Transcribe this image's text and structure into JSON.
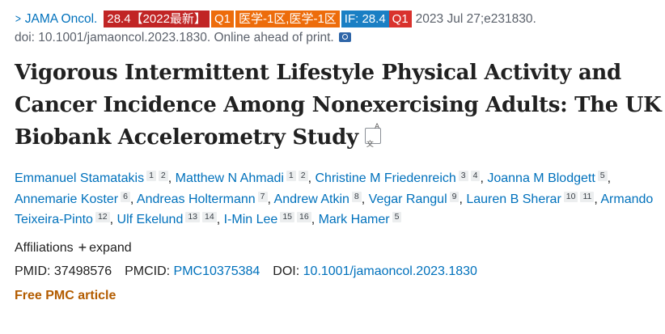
{
  "citation": {
    "journal": "JAMA Oncol.",
    "tags": [
      "28.4【2022最新】",
      "Q1",
      "医学-1区,医学-1区"
    ],
    "if_label": "IF: 28.4",
    "if_quartile": "Q1",
    "date": "2023 Jul 27;e231830.",
    "doi_line": "doi: 10.1001/jamaoncol.2023.1830. Online ahead of print."
  },
  "title": "Vigorous Intermittent Lifestyle Physical Activity and Cancer Incidence Among Nonexercising Adults: The UK Biobank Accelerometry Study",
  "translate_icon": {
    "zh": "文",
    "en": "A"
  },
  "authors": [
    {
      "name": "Emmanuel Stamatakis",
      "aff": [
        "1",
        "2"
      ]
    },
    {
      "name": "Matthew N Ahmadi",
      "aff": [
        "1",
        "2"
      ]
    },
    {
      "name": "Christine M Friedenreich",
      "aff": [
        "3",
        "4"
      ]
    },
    {
      "name": "Joanna M Blodgett",
      "aff": [
        "5"
      ]
    },
    {
      "name": "Annemarie Koster",
      "aff": [
        "6"
      ]
    },
    {
      "name": "Andreas Holtermann",
      "aff": [
        "7"
      ]
    },
    {
      "name": "Andrew Atkin",
      "aff": [
        "8"
      ]
    },
    {
      "name": "Vegar Rangul",
      "aff": [
        "9"
      ]
    },
    {
      "name": "Lauren B Sherar",
      "aff": [
        "10",
        "11"
      ]
    },
    {
      "name": "Armando Teixeira-Pinto",
      "aff": [
        "12"
      ]
    },
    {
      "name": "Ulf Ekelund",
      "aff": [
        "13",
        "14"
      ]
    },
    {
      "name": "I-Min Lee",
      "aff": [
        "15",
        "16"
      ]
    },
    {
      "name": "Mark Hamer",
      "aff": [
        "5"
      ]
    }
  ],
  "affiliations": {
    "label": "Affiliations",
    "expand": "expand"
  },
  "ids": {
    "pmid_label": "PMID:",
    "pmid": "37498576",
    "pmcid_label": "PMCID:",
    "pmcid": "PMC10375384",
    "doi_label": "DOI:",
    "doi": "10.1001/jamaoncol.2023.1830"
  },
  "free_article": "Free PMC article"
}
